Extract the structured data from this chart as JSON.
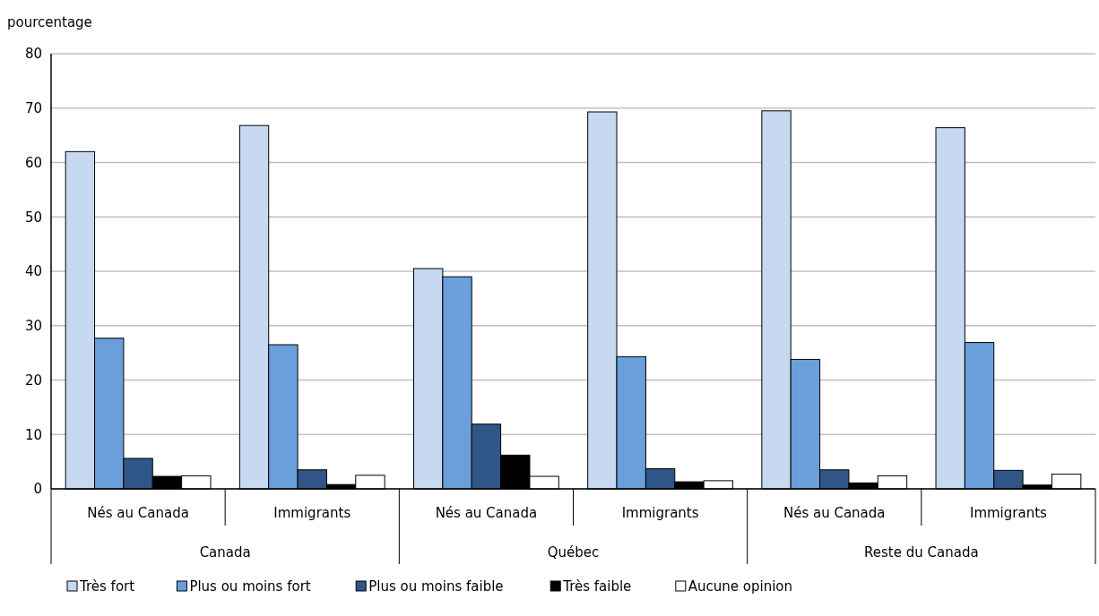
{
  "chart_data": {
    "type": "bar",
    "ylabel": "pourcentage",
    "categories": [
      "Nés au Canada",
      "Immigrants",
      "Nés au Canada",
      "Immigrants",
      "Nés au Canada",
      "Immigrants"
    ],
    "annotations": [
      "Canada",
      "Québec",
      "Reste du Canada"
    ],
    "series": [
      {
        "name": "Très fort",
        "color": "#c6d9f1",
        "values": [
          62.0,
          66.8,
          40.5,
          69.3,
          69.5,
          66.4
        ]
      },
      {
        "name": "Plus ou moins fort",
        "color": "#6a9fdc",
        "values": [
          27.7,
          26.5,
          39.0,
          24.3,
          23.8,
          26.9
        ]
      },
      {
        "name": "Plus ou moins faible",
        "color": "#2f5686",
        "values": [
          5.6,
          3.5,
          11.9,
          3.7,
          3.5,
          3.4
        ]
      },
      {
        "name": "Très faible",
        "color": "#000000",
        "values": [
          2.3,
          0.8,
          6.2,
          1.3,
          1.1,
          0.7
        ]
      },
      {
        "name": "Aucune opinion",
        "color": "#ffffff",
        "values": [
          2.4,
          2.5,
          2.3,
          1.5,
          2.4,
          2.7
        ]
      }
    ],
    "ylim": [
      0,
      80
    ],
    "yticks": [
      0,
      10,
      20,
      30,
      40,
      50,
      60,
      70,
      80
    ],
    "grid": "y",
    "legend": "bottom"
  }
}
